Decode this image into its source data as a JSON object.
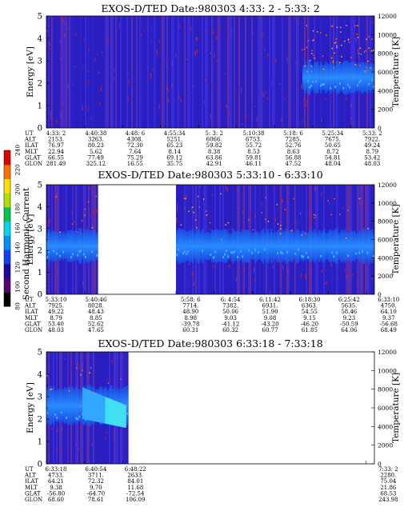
{
  "colorbar": {
    "label": "Second Harmonic Current",
    "ticks": [
      "80",
      "100",
      "120",
      "140",
      "160",
      "180",
      "200",
      "220",
      "240"
    ],
    "colors": [
      "#000000",
      "#5a007a",
      "#1a0aa0",
      "#1040ff",
      "#0090ff",
      "#00d8e8",
      "#00c850",
      "#b0e000",
      "#ffe000",
      "#ff7000",
      "#e00000"
    ]
  },
  "chart_data": [
    {
      "type": "heatmap",
      "title": "EXOS-D/TED   Date:980303  4:33: 2 - 5:33: 2",
      "ylabel": "Energy [eV]",
      "y2label": "Temperature [K]",
      "ylim": [
        0,
        5
      ],
      "y2lim": [
        0,
        12000
      ],
      "yticks": [
        "0",
        "1",
        "2",
        "3",
        "4",
        "5"
      ],
      "y2ticks": [
        "0",
        "2000",
        "4000",
        "6000",
        "8000",
        "10000",
        "12000"
      ],
      "gaps": [],
      "band": {
        "low": 1.6,
        "high": 2.9,
        "from": 0.78
      },
      "row_labels": [
        "UT",
        "ALT",
        "ILAT",
        "MLT",
        "GLAT",
        "GLON"
      ],
      "columns": [
        {
          "at": 0.0,
          "values": [
            "4:33: 2",
            "2153.",
            "76.97",
            "22.94",
            "66.55",
            "281.49"
          ]
        },
        {
          "at": 0.117,
          "values": [
            "4:40:38",
            "3263.",
            "80.23",
            "5.62",
            "77.49",
            "325.12"
          ]
        },
        {
          "at": 0.232,
          "values": [
            "4:48: 6",
            "4308.",
            "72.30",
            "7.64",
            "75.29",
            "16.55"
          ]
        },
        {
          "at": 0.348,
          "values": [
            "4:55:34",
            "5251.",
            "65.23",
            "8.14",
            "69.12",
            "35.75"
          ]
        },
        {
          "at": 0.464,
          "values": [
            "5: 3: 2",
            "6066.",
            "59.82",
            "8.38",
            "63.86",
            "42.91"
          ]
        },
        {
          "at": 0.58,
          "values": [
            "5:10:38",
            "6753.",
            "55.72",
            "8.53",
            "59.81",
            "46.11"
          ]
        },
        {
          "at": 0.696,
          "values": [
            "5:18: 6",
            "7285.",
            "52.76",
            "8.63",
            "56.88",
            "47.52"
          ]
        },
        {
          "at": 0.812,
          "values": [
            "5:25:34",
            "7675.",
            "50.65",
            "8.72",
            "54.81",
            "48.04"
          ]
        },
        {
          "at": 0.928,
          "values": [
            "5:33: 2",
            "7922.",
            "49.24",
            "8.79",
            "53.42",
            "48.03"
          ]
        }
      ]
    },
    {
      "type": "heatmap",
      "title": "EXOS-D/TED   Date:980303  5:33:10 - 6:33:10",
      "ylabel": "Energy [eV]",
      "y2label": "Temperature [K]",
      "ylim": [
        0,
        5
      ],
      "y2lim": [
        0,
        12000
      ],
      "yticks": [
        "0",
        "1",
        "2",
        "3",
        "4",
        "5"
      ],
      "y2ticks": [
        "0",
        "2000",
        "4000",
        "6000",
        "8000",
        "10000",
        "12000"
      ],
      "gaps": [
        [
          0.155,
          0.395
        ]
      ],
      "band": {
        "low": 1.5,
        "high": 2.9,
        "from": 0.0
      },
      "row_labels": [
        "UT",
        "ALT",
        "ILAT",
        "MLT",
        "GLAT",
        "GLON"
      ],
      "columns": [
        {
          "at": 0.0,
          "values": [
            "5:33:10",
            "7925.",
            "49.22",
            "8.79",
            "53.40",
            "48.03"
          ]
        },
        {
          "at": 0.117,
          "values": [
            "5:40:46",
            "8028.",
            "48.43",
            "8.85",
            "52.62",
            "47.65"
          ]
        },
        {
          "at": 0.395,
          "values": [
            "5:58: 6",
            "7714.",
            "48.90",
            "8.98",
            "-39.78",
            "60.31"
          ]
        },
        {
          "at": 0.512,
          "values": [
            "6: 4:54",
            "7382.",
            "50.06",
            "9.03",
            "-41.12",
            "60.32"
          ]
        },
        {
          "at": 0.628,
          "values": [
            "6:11:42",
            "6931.",
            "51.90",
            "9.08",
            "-43.20",
            "60.77"
          ]
        },
        {
          "at": 0.744,
          "values": [
            "6:18:30",
            "6363.",
            "54.55",
            "9.15",
            "-46.20",
            "61.85"
          ]
        },
        {
          "at": 0.86,
          "values": [
            "6:25:42",
            "5635.",
            "58.46",
            "9.23",
            "-50.59",
            "64.06"
          ]
        },
        {
          "at": 0.976,
          "values": [
            "6:33:10",
            "4750.",
            "64.10",
            "9.37",
            "-56.68",
            "68.49"
          ]
        }
      ]
    },
    {
      "type": "heatmap",
      "title": "EXOS-D/TED   Date:980303  6:33:18 - 7:33:18",
      "ylabel": "Energy [eV]",
      "y2label": "Temperature [K]",
      "ylim": [
        0,
        5
      ],
      "y2lim": [
        0,
        12000
      ],
      "yticks": [
        "0",
        "1",
        "2",
        "3",
        "4",
        "5"
      ],
      "y2ticks": [
        "0",
        "2000",
        "4000",
        "6000",
        "8000",
        "10000",
        "12000"
      ],
      "gaps": [
        [
          0.245,
          1.0
        ]
      ],
      "band": {
        "low": 1.8,
        "high": 3.4,
        "from": 0.0
      },
      "row_labels": [
        "UT",
        "ALT",
        "ILAT",
        "MLT",
        "GLAT",
        "GLON"
      ],
      "columns": [
        {
          "at": 0.0,
          "values": [
            "6:33:18",
            "4733.",
            "64.21",
            "9.38",
            "-56.80",
            "68.60"
          ]
        },
        {
          "at": 0.117,
          "values": [
            "6:40:54",
            "3711.",
            "72.32",
            "9.70",
            "-64.70",
            "78.61"
          ]
        },
        {
          "at": 0.233,
          "values": [
            "6:48:22",
            "2633.",
            "84.01",
            "11.68",
            "-72.54",
            "106.09"
          ]
        },
        {
          "at": 0.975,
          "values": [
            "7:33: 2",
            "2280.",
            "75.04",
            "21.86",
            "68.53",
            "243.98"
          ]
        }
      ]
    }
  ]
}
